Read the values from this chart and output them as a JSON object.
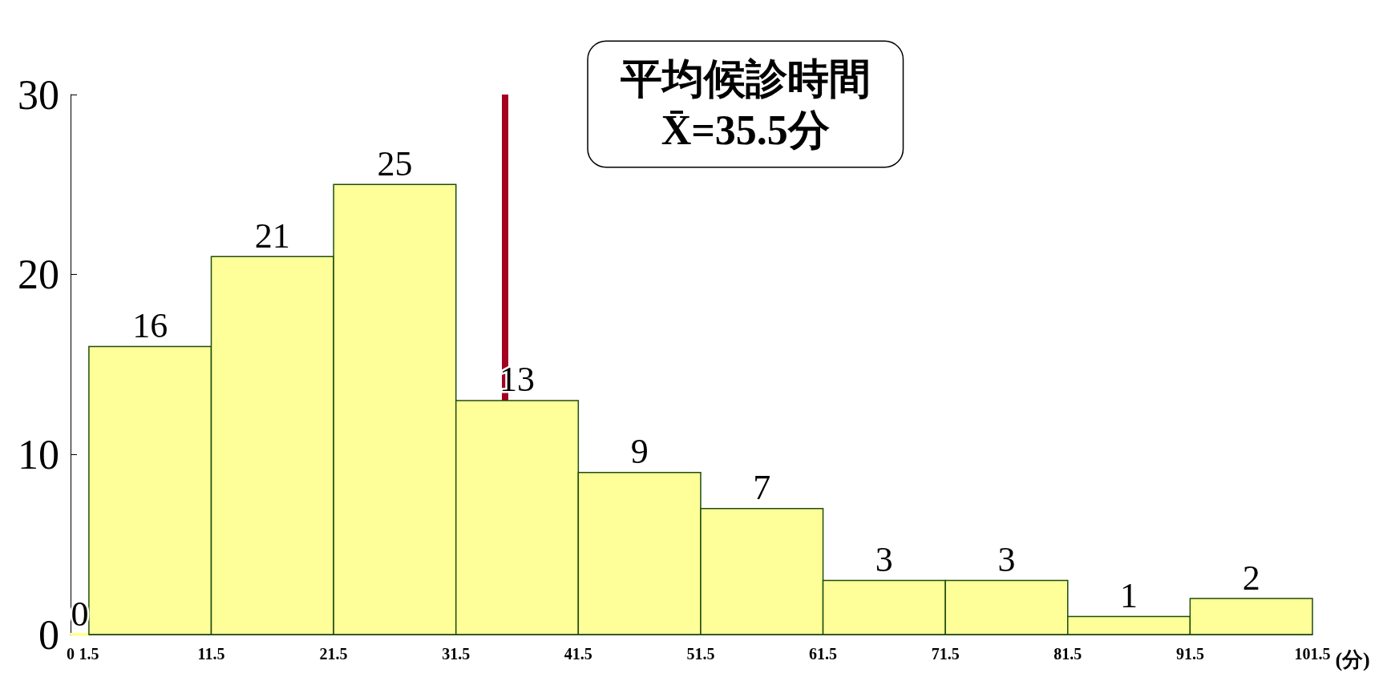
{
  "chart_data": {
    "type": "histogram",
    "xlabel": "(分)",
    "bins": [
      0,
      1.5,
      11.5,
      21.5,
      31.5,
      41.5,
      51.5,
      61.5,
      71.5,
      81.5,
      91.5,
      101.5
    ],
    "values": [
      0,
      16,
      21,
      25,
      13,
      9,
      7,
      3,
      3,
      1,
      2
    ],
    "color": "#ffff99",
    "xlim": [
      0,
      101.5
    ],
    "xticks": [
      0,
      1.5,
      11.5,
      21.5,
      31.5,
      41.5,
      51.5,
      61.5,
      71.5,
      81.5,
      91.5,
      101.5
    ],
    "ylim": [
      0,
      30
    ],
    "yticks": [
      0,
      10,
      20,
      30
    ],
    "grid": false,
    "data_labels": true,
    "ref_lines": [
      {
        "axis": "x",
        "value": 35.5,
        "label": "平均候診時間\nX̄=35.5分",
        "color": "#a50021"
      }
    ]
  }
}
